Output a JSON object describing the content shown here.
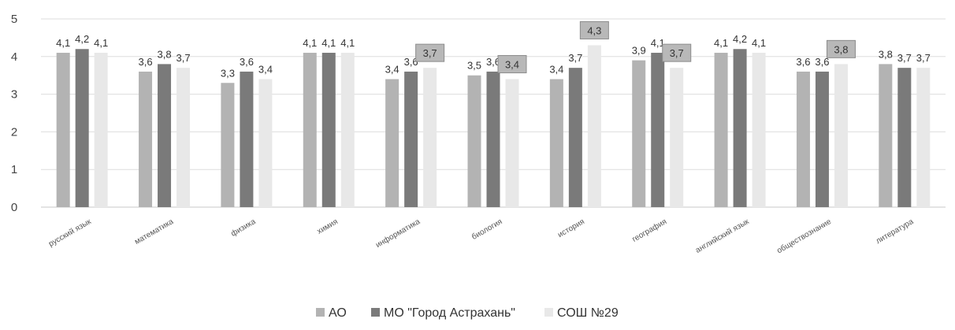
{
  "chart_data": {
    "type": "bar",
    "title": "",
    "xlabel": "",
    "ylabel": "",
    "ylim": [
      0,
      5
    ],
    "yticks": [
      0,
      1,
      2,
      3,
      4,
      5
    ],
    "grid": true,
    "legend_position": "bottom",
    "categories": [
      "русский язык",
      "математика",
      "физика",
      "химия",
      "информатика",
      "биология",
      "история",
      "география",
      "английский язык",
      "обществознание",
      "литература"
    ],
    "series": [
      {
        "name": "АО",
        "color": "#b3b3b3",
        "values": [
          4.1,
          3.6,
          3.3,
          4.1,
          3.4,
          3.5,
          3.4,
          3.9,
          4.1,
          3.6,
          3.8
        ],
        "labels": [
          "4,1",
          "3,6",
          "3,3",
          "4,1",
          "3,4",
          "3,5",
          "3,4",
          "3,9",
          "4,1",
          "3,6",
          "3,8"
        ]
      },
      {
        "name": "МО \"Город Астрахань\"",
        "color": "#7a7a7a",
        "values": [
          4.2,
          3.8,
          3.6,
          4.1,
          3.6,
          3.6,
          3.7,
          4.1,
          4.2,
          3.6,
          3.7
        ],
        "labels": [
          "4,2",
          "3,8",
          "3,6",
          "4,1",
          "3,6",
          "3,6",
          "3,7",
          "4,1",
          "4,2",
          "3,6",
          "3,7"
        ]
      },
      {
        "name": "СОШ №29",
        "color": "#e8e8e8",
        "values": [
          4.1,
          3.7,
          3.4,
          4.1,
          3.7,
          3.4,
          4.3,
          3.7,
          4.1,
          3.8,
          3.7
        ],
        "labels": [
          "4,1",
          "3,7",
          "3,4",
          "4,1",
          "3,7",
          "3,4",
          "4,3",
          "3,7",
          "4,1",
          "3,8",
          "3,7"
        ]
      }
    ],
    "highlighted_labels": [
      {
        "series": 2,
        "category": 4
      },
      {
        "series": 2,
        "category": 5
      },
      {
        "series": 2,
        "category": 6
      },
      {
        "series": 2,
        "category": 7
      },
      {
        "series": 2,
        "category": 9
      }
    ],
    "colors": {
      "grid": "#dddddd",
      "axis": "#c8c8c8",
      "highlight_box": "#b8b8b8",
      "highlight_border": "#8c8c8c"
    }
  }
}
